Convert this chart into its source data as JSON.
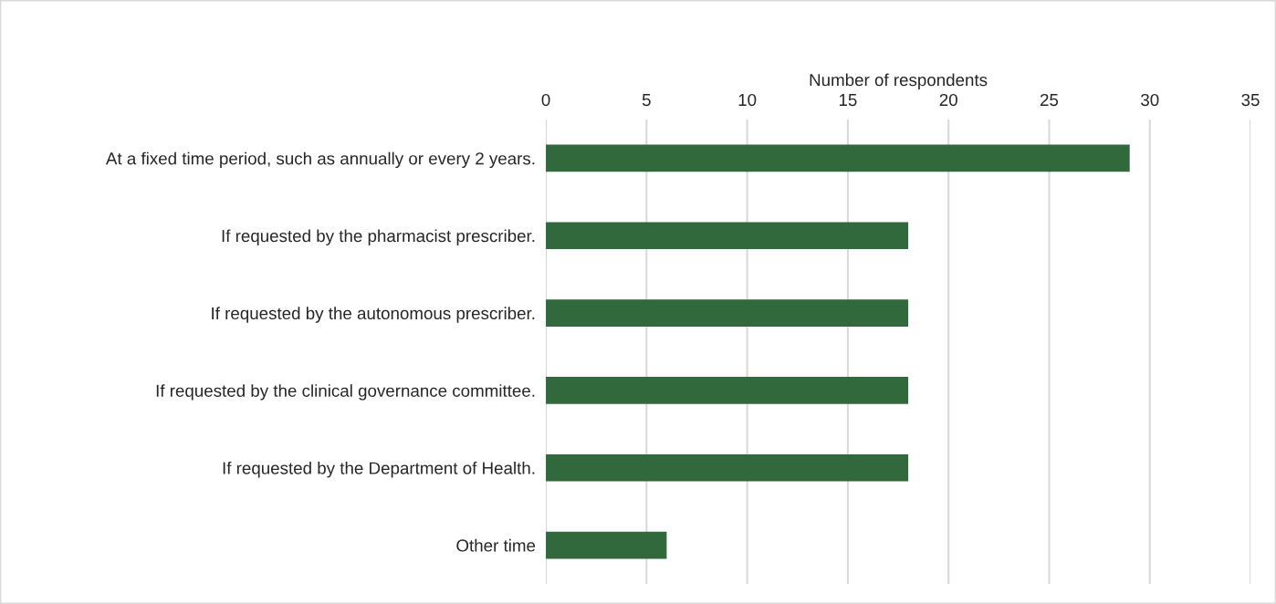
{
  "chart_data": {
    "type": "bar",
    "orientation": "horizontal",
    "xlabel": "Number of respondents",
    "categories": [
      "At a fixed time period, such as annually or every 2 years.",
      "If requested by the pharmacist prescriber.",
      "If requested by the autonomous prescriber.",
      "If requested by the clinical governance committee.",
      "If requested by the Department of Health.",
      "Other time"
    ],
    "values": [
      29,
      18,
      18,
      18,
      18,
      6
    ],
    "color": "#32693c",
    "xlim": [
      0,
      35
    ],
    "xticks": [
      0,
      5,
      10,
      15,
      20,
      25,
      30,
      35
    ],
    "grid": "x"
  }
}
